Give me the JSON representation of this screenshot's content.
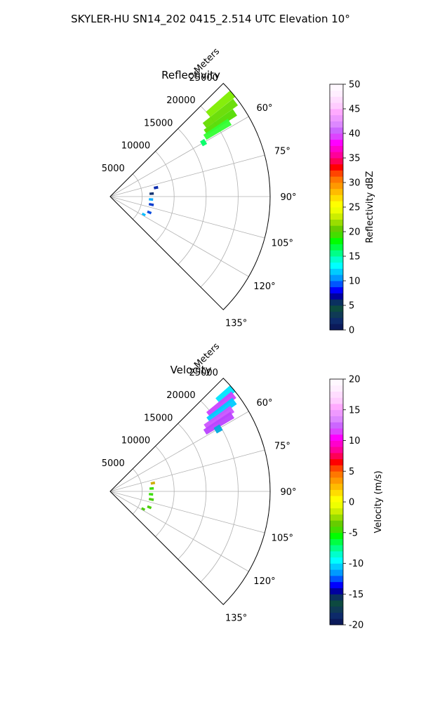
{
  "suptitle": "SKYLER-HU  SN14_202  0415_2.514 UTC Elevation 10°",
  "chart_data": [
    {
      "type": "polar-sector",
      "title": "Reflectivity",
      "radial_label": "Meters",
      "radial_ticks": [
        5000,
        10000,
        15000,
        20000,
        25000
      ],
      "r_max": 25000,
      "theta_ticks": [
        60,
        75,
        90,
        105,
        120,
        135
      ],
      "theta_range": [
        45,
        135
      ],
      "grid": true,
      "colorbar": {
        "label": "Reflectivity dBZ",
        "min": 0,
        "max": 50,
        "ticks": [
          0,
          5,
          10,
          15,
          20,
          25,
          30,
          35,
          40,
          45,
          50
        ],
        "colors": [
          "#0b1a5a",
          "#0d2a6a",
          "#0f3a55",
          "#0d4a40",
          "#0a3060",
          "#0000a0",
          "#0000ff",
          "#0055ff",
          "#0099ff",
          "#00ccff",
          "#00ffff",
          "#00ffcc",
          "#00ff88",
          "#00ff44",
          "#00ff00",
          "#44dd00",
          "#66cc00",
          "#99dd00",
          "#ccee00",
          "#eeff00",
          "#ffff00",
          "#ffdd00",
          "#ffbb00",
          "#ff9900",
          "#ff7700",
          "#ff4400",
          "#ff0000",
          "#ff0055",
          "#ff0099",
          "#ff00cc",
          "#ff00ff",
          "#dd44ff",
          "#cc66ff",
          "#dd88ff",
          "#ee99ff",
          "#ffaaff",
          "#ffccff",
          "#ffddff",
          "#ffeeff",
          "#fff8ff"
        ]
      },
      "echoes": [
        {
          "az": 50,
          "r0": 20000,
          "r1": 25000,
          "color": "#7fee00"
        },
        {
          "az": 53,
          "r0": 18500,
          "r1": 24500,
          "color": "#66dd00"
        },
        {
          "az": 56,
          "r0": 18000,
          "r1": 23500,
          "color": "#55dd00"
        },
        {
          "az": 58,
          "r0": 17500,
          "r1": 22000,
          "color": "#33ff33"
        },
        {
          "az": 60,
          "r0": 16500,
          "r1": 17200,
          "color": "#00ff66"
        },
        {
          "az": 79,
          "r0": 7000,
          "r1": 7600,
          "color": "#0022aa"
        },
        {
          "az": 86,
          "r0": 6200,
          "r1": 6800,
          "color": "#0a2a6a"
        },
        {
          "az": 94,
          "r0": 6100,
          "r1": 6700,
          "color": "#00aaff"
        },
        {
          "az": 101,
          "r0": 6200,
          "r1": 6900,
          "color": "#0033cc"
        },
        {
          "az": 112,
          "r0": 6300,
          "r1": 6900,
          "color": "#0044dd"
        },
        {
          "az": 118,
          "r0": 5700,
          "r1": 6200,
          "color": "#00bbff"
        }
      ]
    },
    {
      "type": "polar-sector",
      "title": "Velocity",
      "radial_label": "Meters",
      "radial_ticks": [
        5000,
        10000,
        15000,
        20000,
        25000
      ],
      "r_max": 25000,
      "theta_ticks": [
        60,
        75,
        90,
        105,
        120,
        135
      ],
      "theta_range": [
        45,
        135
      ],
      "grid": true,
      "colorbar": {
        "label": "Velocity (m/s)",
        "min": -20,
        "max": 20,
        "ticks": [
          -20,
          -15,
          -10,
          -5,
          0,
          5,
          10,
          15,
          20
        ],
        "colors": [
          "#0b1a5a",
          "#0d2a6a",
          "#0f3a55",
          "#0d4a40",
          "#0a3060",
          "#0000a0",
          "#0000ff",
          "#0055ff",
          "#0099ff",
          "#00ccff",
          "#00ffff",
          "#00ffcc",
          "#00ff88",
          "#00ff44",
          "#00ff00",
          "#44dd00",
          "#66cc00",
          "#99dd00",
          "#ccee00",
          "#eeff00",
          "#ffff00",
          "#ffdd00",
          "#ffbb00",
          "#ff9900",
          "#ff7700",
          "#ff4400",
          "#ff0000",
          "#ff0055",
          "#ff0099",
          "#ff00cc",
          "#ff00ff",
          "#dd44ff",
          "#cc66ff",
          "#dd88ff",
          "#ee99ff",
          "#ffaaff",
          "#ffccff",
          "#ffddff",
          "#ffeeff",
          "#fff8ff"
        ]
      },
      "echoes": [
        {
          "az": 50,
          "r0": 22000,
          "r1": 25000,
          "color": "#00e5ff"
        },
        {
          "az": 52,
          "r0": 19500,
          "r1": 24500,
          "color": "#cc44ff"
        },
        {
          "az": 54,
          "r0": 19000,
          "r1": 24000,
          "color": "#00ccff"
        },
        {
          "az": 56,
          "r0": 18000,
          "r1": 23000,
          "color": "#cc55ff"
        },
        {
          "az": 58,
          "r0": 17500,
          "r1": 22500,
          "color": "#bb44ff"
        },
        {
          "az": 60,
          "r0": 19000,
          "r1": 20000,
          "color": "#00aadd"
        },
        {
          "az": 79,
          "r0": 6500,
          "r1": 7100,
          "color": "#ccaa00"
        },
        {
          "az": 86,
          "r0": 6200,
          "r1": 6800,
          "color": "#33dd00"
        },
        {
          "az": 94,
          "r0": 6100,
          "r1": 6700,
          "color": "#33dd00"
        },
        {
          "az": 101,
          "r0": 6200,
          "r1": 6900,
          "color": "#44cc00"
        },
        {
          "az": 112,
          "r0": 6300,
          "r1": 6900,
          "color": "#44cc00"
        },
        {
          "az": 118,
          "r0": 5600,
          "r1": 6100,
          "color": "#44cc00"
        }
      ]
    }
  ]
}
